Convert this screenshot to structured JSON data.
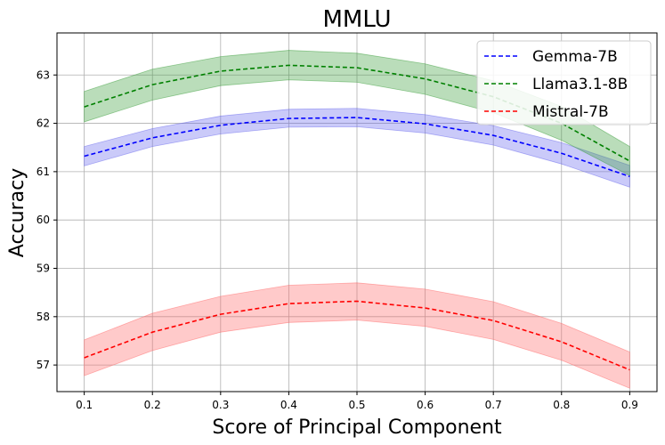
{
  "chart_data": {
    "type": "line",
    "title": "MMLU",
    "xlabel": "Score of Principal Component",
    "ylabel": "Accuracy",
    "x": [
      0.1,
      0.2,
      0.3,
      0.4,
      0.5,
      0.6,
      0.7,
      0.8,
      0.9
    ],
    "x_tick_labels": [
      "0.1",
      "0.2",
      "0.3",
      "0.4",
      "0.5",
      "0.6",
      "0.7",
      "0.8",
      "0.9"
    ],
    "y_ticks": [
      57,
      58,
      59,
      60,
      61,
      62,
      63
    ],
    "y_tick_labels": [
      "57",
      "58",
      "59",
      "60",
      "61",
      "62",
      "63"
    ],
    "xlim": [
      0.06,
      0.94
    ],
    "ylim": [
      56.45,
      63.87
    ],
    "grid": true,
    "legend_position": "top-right",
    "series": [
      {
        "name": "Gemma-7B",
        "color": "#0000ff",
        "band_color": "#6666ee",
        "values": [
          61.32,
          61.7,
          61.96,
          62.1,
          62.12,
          61.99,
          61.75,
          61.38,
          60.9
        ],
        "lower": [
          61.12,
          61.52,
          61.78,
          61.92,
          61.93,
          61.8,
          61.55,
          61.16,
          60.68
        ],
        "upper": [
          61.52,
          61.89,
          62.15,
          62.29,
          62.31,
          62.18,
          61.95,
          61.6,
          61.13
        ]
      },
      {
        "name": "Llama3.1-8B",
        "color": "#008000",
        "band_color": "#3a9e3a",
        "values": [
          62.34,
          62.8,
          63.08,
          63.2,
          63.15,
          62.92,
          62.55,
          62.0,
          61.22
        ],
        "lower": [
          62.03,
          62.48,
          62.78,
          62.9,
          62.85,
          62.6,
          62.22,
          61.65,
          60.92
        ],
        "upper": [
          62.66,
          63.12,
          63.38,
          63.51,
          63.45,
          63.23,
          62.88,
          62.35,
          61.52
        ]
      },
      {
        "name": "Mistral-7B",
        "color": "#ff0000",
        "band_color": "#ff6666",
        "values": [
          57.15,
          57.68,
          58.05,
          58.27,
          58.32,
          58.18,
          57.92,
          57.48,
          56.9
        ],
        "lower": [
          56.78,
          57.3,
          57.68,
          57.88,
          57.93,
          57.8,
          57.53,
          57.1,
          56.52
        ],
        "upper": [
          57.52,
          58.07,
          58.42,
          58.65,
          58.7,
          58.57,
          58.31,
          57.86,
          57.27
        ]
      }
    ]
  }
}
